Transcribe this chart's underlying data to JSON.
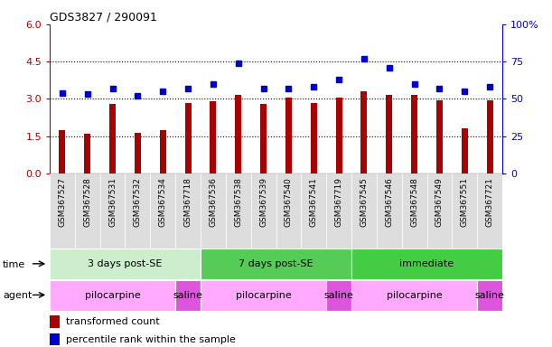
{
  "title": "GDS3827 / 290091",
  "samples": [
    "GSM367527",
    "GSM367528",
    "GSM367531",
    "GSM367532",
    "GSM367534",
    "GSM367718",
    "GSM367536",
    "GSM367538",
    "GSM367539",
    "GSM367540",
    "GSM367541",
    "GSM367719",
    "GSM367545",
    "GSM367546",
    "GSM367548",
    "GSM367549",
    "GSM367551",
    "GSM367721"
  ],
  "bar_values": [
    1.75,
    1.6,
    2.8,
    1.65,
    1.75,
    2.85,
    2.9,
    3.15,
    2.8,
    3.05,
    2.85,
    3.05,
    3.3,
    3.15,
    3.15,
    2.95,
    1.8,
    2.95
  ],
  "dot_values": [
    54,
    53,
    57,
    52,
    55,
    57,
    60,
    74,
    57,
    57,
    58,
    63,
    77,
    71,
    60,
    57,
    55,
    58
  ],
  "bar_color": "#aa0000",
  "dot_color": "#0000cc",
  "ylim_left": [
    0,
    6
  ],
  "ylim_right": [
    0,
    100
  ],
  "yticks_left": [
    0,
    1.5,
    3.0,
    4.5,
    6
  ],
  "yticks_right": [
    0,
    25,
    50,
    75,
    100
  ],
  "hlines": [
    1.5,
    3.0,
    4.5
  ],
  "time_groups": [
    {
      "label": "3 days post-SE",
      "start": 0,
      "end": 6,
      "color": "#cceecc"
    },
    {
      "label": "7 days post-SE",
      "start": 6,
      "end": 12,
      "color": "#55cc55"
    },
    {
      "label": "immediate",
      "start": 12,
      "end": 18,
      "color": "#44cc44"
    }
  ],
  "agent_groups": [
    {
      "label": "pilocarpine",
      "start": 0,
      "end": 5,
      "color": "#ffaaff"
    },
    {
      "label": "saline",
      "start": 5,
      "end": 6,
      "color": "#dd55dd"
    },
    {
      "label": "pilocarpine",
      "start": 6,
      "end": 11,
      "color": "#ffaaff"
    },
    {
      "label": "saline",
      "start": 11,
      "end": 12,
      "color": "#dd55dd"
    },
    {
      "label": "pilocarpine",
      "start": 12,
      "end": 17,
      "color": "#ffaaff"
    },
    {
      "label": "saline",
      "start": 17,
      "end": 18,
      "color": "#dd55dd"
    }
  ],
  "legend_bar_label": "transformed count",
  "legend_dot_label": "percentile rank within the sample",
  "time_label": "time",
  "agent_label": "agent",
  "label_row_color": "#cccccc",
  "n_samples": 18
}
